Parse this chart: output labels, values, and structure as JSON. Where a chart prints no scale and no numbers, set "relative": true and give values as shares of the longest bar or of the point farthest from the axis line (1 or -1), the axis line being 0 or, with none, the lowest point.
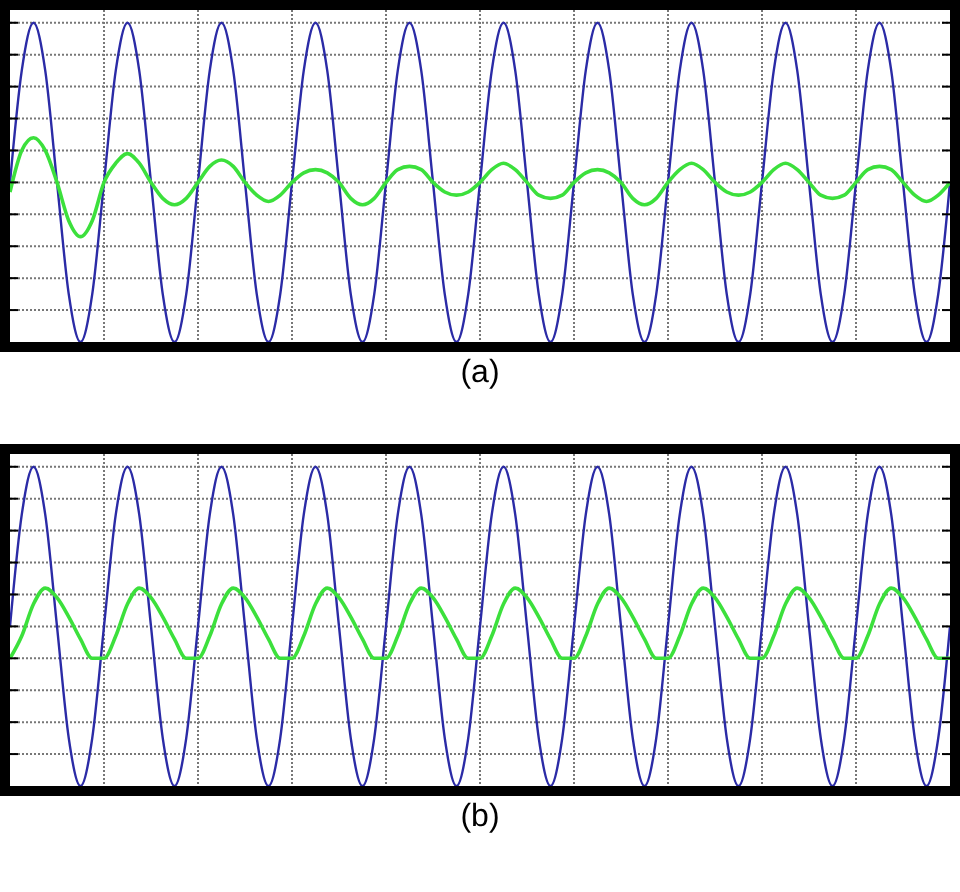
{
  "chart_data": [
    {
      "type": "line",
      "xlabel": "(a)",
      "relative": true,
      "grid": true,
      "marker": "none",
      "categories": [
        null,
        null,
        null,
        null,
        null,
        null,
        null,
        null,
        null,
        null,
        null,
        null,
        null,
        null,
        null,
        null,
        null,
        null,
        null,
        null,
        null,
        null,
        null,
        null,
        null,
        null,
        null,
        null,
        null,
        null,
        null,
        null,
        null,
        null,
        null,
        null,
        null,
        null,
        null,
        null,
        null,
        null,
        null,
        null,
        null,
        null,
        null,
        null,
        null,
        null,
        null,
        null,
        null,
        null,
        null,
        null,
        null,
        null,
        null,
        null,
        null,
        null,
        null,
        null,
        null,
        null,
        null,
        null,
        null,
        null,
        null,
        null,
        null,
        null,
        null,
        null,
        null,
        null,
        null,
        null,
        null
      ],
      "series": [
        {
          "color": "#2b2ba6",
          "values": [
            0.5,
            0.85,
            1,
            0.85,
            0.5,
            0.15,
            0,
            0.15,
            0.5,
            0.85,
            1,
            0.85,
            0.5,
            0.15,
            0,
            0.15,
            0.5,
            0.85,
            1,
            0.85,
            0.5,
            0.15,
            0,
            0.15,
            0.5,
            0.85,
            1,
            0.85,
            0.5,
            0.15,
            0,
            0.15,
            0.5,
            0.85,
            1,
            0.85,
            0.5,
            0.15,
            0,
            0.15,
            0.5,
            0.85,
            1,
            0.85,
            0.5,
            0.15,
            0,
            0.15,
            0.5,
            0.85,
            1,
            0.85,
            0.5,
            0.15,
            0,
            0.15,
            0.5,
            0.85,
            1,
            0.85,
            0.5,
            0.15,
            0,
            0.15,
            0.5,
            0.85,
            1,
            0.85,
            0.5,
            0.15,
            0,
            0.15,
            0.5,
            0.85,
            1,
            0.85,
            0.5,
            0.15,
            0,
            0.15,
            0.5
          ]
        },
        {
          "color": "#3ce03c",
          "values": [
            0.47,
            0.6,
            0.64,
            0.6,
            0.5,
            0.38,
            0.33,
            0.38,
            0.5,
            0.56,
            0.59,
            0.56,
            0.5,
            0.45,
            0.43,
            0.45,
            0.5,
            0.55,
            0.57,
            0.55,
            0.5,
            0.46,
            0.44,
            0.46,
            0.5,
            0.53,
            0.54,
            0.53,
            0.5,
            0.45,
            0.43,
            0.45,
            0.5,
            0.54,
            0.55,
            0.54,
            0.5,
            0.47,
            0.46,
            0.47,
            0.5,
            0.54,
            0.56,
            0.54,
            0.5,
            0.46,
            0.45,
            0.46,
            0.5,
            0.53,
            0.54,
            0.53,
            0.5,
            0.45,
            0.43,
            0.45,
            0.5,
            0.54,
            0.56,
            0.54,
            0.5,
            0.47,
            0.46,
            0.47,
            0.5,
            0.54,
            0.56,
            0.54,
            0.5,
            0.46,
            0.45,
            0.46,
            0.5,
            0.54,
            0.55,
            0.54,
            0.5,
            0.46,
            0.44,
            0.46,
            0.5
          ]
        }
      ]
    },
    {
      "type": "line",
      "xlabel": "(b)",
      "relative": true,
      "grid": true,
      "marker": "none",
      "categories": [
        null,
        null,
        null,
        null,
        null,
        null,
        null,
        null,
        null,
        null,
        null,
        null,
        null,
        null,
        null,
        null,
        null,
        null,
        null,
        null,
        null,
        null,
        null,
        null,
        null,
        null,
        null,
        null,
        null,
        null,
        null,
        null,
        null,
        null,
        null,
        null,
        null,
        null,
        null,
        null,
        null,
        null,
        null,
        null,
        null,
        null,
        null,
        null,
        null,
        null,
        null,
        null,
        null,
        null,
        null,
        null,
        null,
        null,
        null,
        null,
        null,
        null,
        null,
        null,
        null,
        null,
        null,
        null,
        null,
        null,
        null,
        null,
        null,
        null,
        null,
        null,
        null,
        null,
        null,
        null,
        null
      ],
      "series": [
        {
          "color": "#2b2ba6",
          "values": [
            0.5,
            0.85,
            1,
            0.85,
            0.5,
            0.15,
            0,
            0.15,
            0.5,
            0.85,
            1,
            0.85,
            0.5,
            0.15,
            0,
            0.15,
            0.5,
            0.85,
            1,
            0.85,
            0.5,
            0.15,
            0,
            0.15,
            0.5,
            0.85,
            1,
            0.85,
            0.5,
            0.15,
            0,
            0.15,
            0.5,
            0.85,
            1,
            0.85,
            0.5,
            0.15,
            0,
            0.15,
            0.5,
            0.85,
            1,
            0.85,
            0.5,
            0.15,
            0,
            0.15,
            0.5,
            0.85,
            1,
            0.85,
            0.5,
            0.15,
            0,
            0.15,
            0.5,
            0.85,
            1,
            0.85,
            0.5,
            0.15,
            0,
            0.15,
            0.5,
            0.85,
            1,
            0.85,
            0.5,
            0.15,
            0,
            0.15,
            0.5,
            0.85,
            1,
            0.85,
            0.5,
            0.15,
            0,
            0.15,
            0.5
          ]
        },
        {
          "color": "#3ce03c",
          "values": [
            0.4,
            0.47,
            0.57,
            0.62,
            0.59,
            0.53,
            0.46,
            0.4,
            0.4,
            0.47,
            0.57,
            0.62,
            0.59,
            0.53,
            0.46,
            0.4,
            0.4,
            0.47,
            0.57,
            0.62,
            0.59,
            0.53,
            0.46,
            0.4,
            0.4,
            0.47,
            0.57,
            0.62,
            0.59,
            0.53,
            0.46,
            0.4,
            0.4,
            0.47,
            0.57,
            0.62,
            0.59,
            0.53,
            0.46,
            0.4,
            0.4,
            0.47,
            0.57,
            0.62,
            0.59,
            0.53,
            0.46,
            0.4,
            0.4,
            0.47,
            0.57,
            0.62,
            0.59,
            0.53,
            0.46,
            0.4,
            0.4,
            0.47,
            0.57,
            0.62,
            0.59,
            0.53,
            0.46,
            0.4,
            0.4,
            0.47,
            0.57,
            0.62,
            0.59,
            0.53,
            0.46,
            0.4,
            0.4,
            0.47,
            0.57,
            0.62,
            0.59,
            0.53,
            0.46,
            0.4,
            0.4
          ]
        }
      ]
    }
  ]
}
